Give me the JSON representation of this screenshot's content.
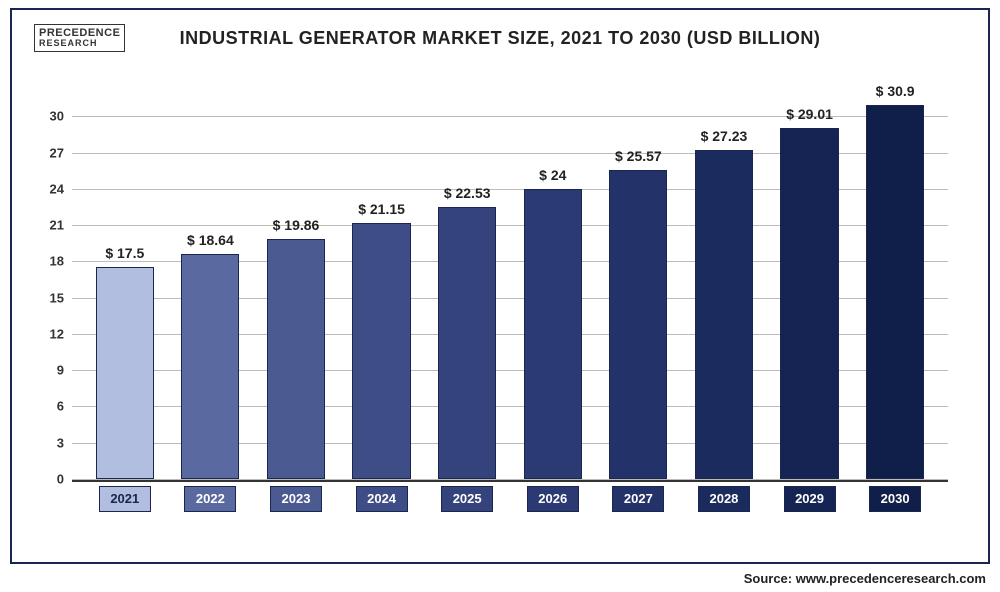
{
  "logo": {
    "line1": "PRECEDENCE",
    "line2": "RESEARCH"
  },
  "title": "INDUSTRIAL GENERATOR MARKET SIZE, 2021 TO 2030 (USD BILLION)",
  "source": "Source: www.precedenceresearch.com",
  "chart": {
    "type": "bar",
    "ylim": [
      0,
      33
    ],
    "yticks": [
      0,
      3,
      6,
      9,
      12,
      15,
      18,
      21,
      24,
      27,
      30
    ],
    "grid_color": "#bbbbbb",
    "axis_color": "#333333",
    "background_color": "#ffffff",
    "title_fontsize": 18,
    "label_fontsize": 13,
    "value_fontsize": 14,
    "bar_width": 0.68,
    "categories": [
      "2021",
      "2022",
      "2023",
      "2024",
      "2025",
      "2026",
      "2027",
      "2028",
      "2029",
      "2030"
    ],
    "values": [
      17.5,
      18.64,
      19.86,
      21.15,
      22.53,
      24,
      25.57,
      27.23,
      29.01,
      30.9
    ],
    "value_labels": [
      "$ 17.5",
      "$ 18.64",
      "$ 19.86",
      "$ 21.15",
      "$ 22.53",
      "$ 24",
      "$ 25.57",
      "$ 27.23",
      "$ 29.01",
      "$ 30.9"
    ],
    "bar_colors": [
      "#b2bee0",
      "#5a6aa0",
      "#4c5a92",
      "#3f4d86",
      "#34437c",
      "#2b3a72",
      "#233268",
      "#1c2b5e",
      "#162454",
      "#101e4a"
    ],
    "x_label_bg_colors": [
      "#b2bee0",
      "#5a6aa0",
      "#4c5a92",
      "#3f4d86",
      "#34437c",
      "#2b3a72",
      "#233268",
      "#1c2b5e",
      "#162454",
      "#101e4a"
    ],
    "x_label_text_color_first": "#1a2550",
    "x_label_text_color_rest": "#ffffff"
  }
}
